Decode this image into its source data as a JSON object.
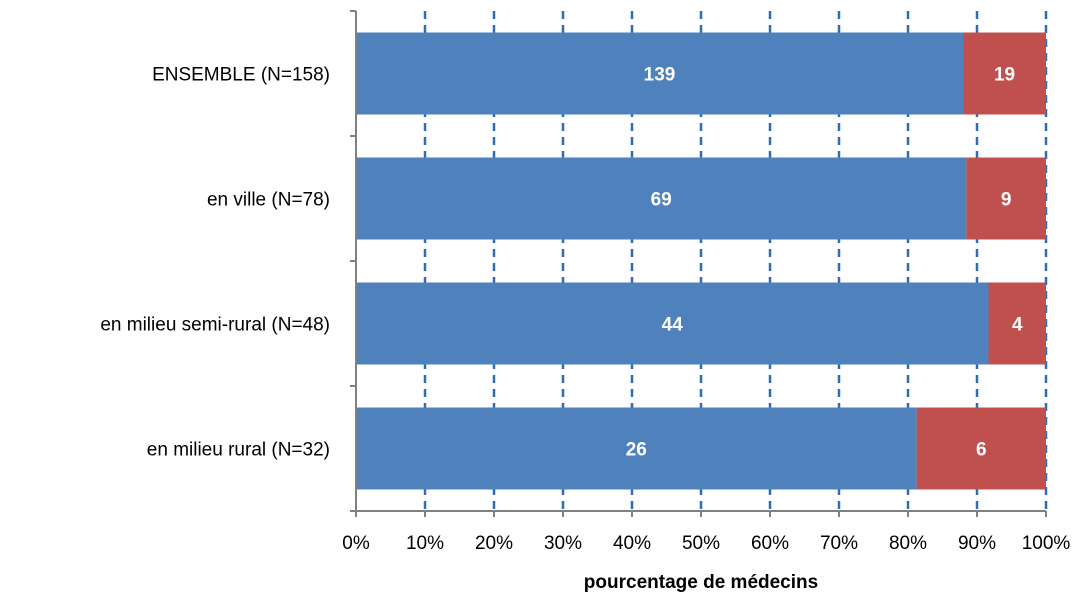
{
  "chart_data": {
    "type": "bar",
    "orientation": "horizontal",
    "stacked": "percent",
    "categories": [
      "ENSEMBLE (N=158)",
      "en ville (N=78)",
      "en milieu semi-rural (N=48)",
      "en milieu rural (N=32)"
    ],
    "series": [
      {
        "values": [
          139,
          69,
          44,
          26
        ],
        "color": "#4F81BD"
      },
      {
        "values": [
          19,
          9,
          4,
          6
        ],
        "color": "#C0504D"
      }
    ],
    "xlabel": "pourcentage de médecins",
    "x_ticks": [
      "0%",
      "10%",
      "20%",
      "30%",
      "40%",
      "50%",
      "60%",
      "70%",
      "80%",
      "90%",
      "100%"
    ],
    "xlim": [
      0,
      100
    ],
    "grid": "vertical dashed",
    "grid_color": "#2E6CB5",
    "legend": "none"
  }
}
